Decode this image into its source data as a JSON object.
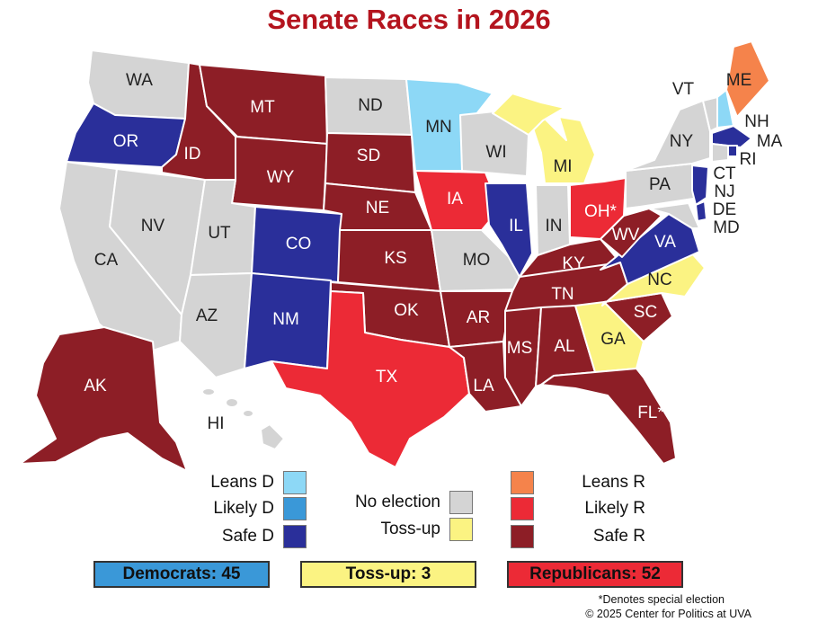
{
  "title": "Senate Races in 2026",
  "colors": {
    "leans_d": "#8dd8f6",
    "likely_d": "#3a98d8",
    "safe_d": "#2a2f9a",
    "no_election": "#d4d4d4",
    "tossup": "#fbf382",
    "leans_r": "#f5834b",
    "likely_r": "#ec2a36",
    "safe_r": "#8d1e26"
  },
  "legend": {
    "leans_d": "Leans D",
    "likely_d": "Likely D",
    "safe_d": "Safe D",
    "no_election": "No election",
    "tossup": "Toss-up",
    "leans_r": "Leans R",
    "likely_r": "Likely R",
    "safe_r": "Safe R"
  },
  "totals": {
    "democrats": "Democrats: 45",
    "tossup": "Toss-up: 3",
    "republicans": "Republicans: 52"
  },
  "footnote": "*Denotes special election",
  "credit": "© 2025 Center for Politics at UVA",
  "states": [
    {
      "code": "WA",
      "label": "WA",
      "rating": "no_election"
    },
    {
      "code": "OR",
      "label": "OR",
      "rating": "safe_d"
    },
    {
      "code": "CA",
      "label": "CA",
      "rating": "no_election"
    },
    {
      "code": "NV",
      "label": "NV",
      "rating": "no_election"
    },
    {
      "code": "ID",
      "label": "ID",
      "rating": "safe_r"
    },
    {
      "code": "MT",
      "label": "MT",
      "rating": "safe_r"
    },
    {
      "code": "WY",
      "label": "WY",
      "rating": "safe_r"
    },
    {
      "code": "UT",
      "label": "UT",
      "rating": "no_election"
    },
    {
      "code": "AZ",
      "label": "AZ",
      "rating": "no_election"
    },
    {
      "code": "CO",
      "label": "CO",
      "rating": "safe_d"
    },
    {
      "code": "NM",
      "label": "NM",
      "rating": "safe_d"
    },
    {
      "code": "ND",
      "label": "ND",
      "rating": "no_election"
    },
    {
      "code": "SD",
      "label": "SD",
      "rating": "safe_r"
    },
    {
      "code": "NE",
      "label": "NE",
      "rating": "safe_r"
    },
    {
      "code": "KS",
      "label": "KS",
      "rating": "safe_r"
    },
    {
      "code": "OK",
      "label": "OK",
      "rating": "safe_r"
    },
    {
      "code": "TX",
      "label": "TX",
      "rating": "likely_r"
    },
    {
      "code": "MN",
      "label": "MN",
      "rating": "leans_d"
    },
    {
      "code": "IA",
      "label": "IA",
      "rating": "likely_r"
    },
    {
      "code": "MO",
      "label": "MO",
      "rating": "no_election"
    },
    {
      "code": "AR",
      "label": "AR",
      "rating": "safe_r"
    },
    {
      "code": "LA",
      "label": "LA",
      "rating": "safe_r"
    },
    {
      "code": "WI",
      "label": "WI",
      "rating": "no_election"
    },
    {
      "code": "IL",
      "label": "IL",
      "rating": "safe_d"
    },
    {
      "code": "MI",
      "label": "MI",
      "rating": "tossup"
    },
    {
      "code": "IN",
      "label": "IN",
      "rating": "no_election"
    },
    {
      "code": "OH",
      "label": "OH*",
      "rating": "likely_r"
    },
    {
      "code": "KY",
      "label": "KY",
      "rating": "safe_r"
    },
    {
      "code": "TN",
      "label": "TN",
      "rating": "safe_r"
    },
    {
      "code": "MS",
      "label": "MS",
      "rating": "safe_r"
    },
    {
      "code": "AL",
      "label": "AL",
      "rating": "safe_r"
    },
    {
      "code": "GA",
      "label": "GA",
      "rating": "tossup"
    },
    {
      "code": "FL",
      "label": "FL*",
      "rating": "safe_r"
    },
    {
      "code": "SC",
      "label": "SC",
      "rating": "safe_r"
    },
    {
      "code": "NC",
      "label": "NC",
      "rating": "tossup"
    },
    {
      "code": "VA",
      "label": "VA",
      "rating": "safe_d"
    },
    {
      "code": "WV",
      "label": "WV",
      "rating": "safe_r"
    },
    {
      "code": "PA",
      "label": "PA",
      "rating": "no_election"
    },
    {
      "code": "NY",
      "label": "NY",
      "rating": "no_election"
    },
    {
      "code": "VT",
      "label": "VT",
      "rating": "no_election"
    },
    {
      "code": "NH",
      "label": "NH",
      "rating": "leans_d"
    },
    {
      "code": "ME",
      "label": "ME",
      "rating": "leans_r"
    },
    {
      "code": "MA",
      "label": "MA",
      "rating": "safe_d"
    },
    {
      "code": "RI",
      "label": "RI",
      "rating": "safe_d"
    },
    {
      "code": "CT",
      "label": "CT",
      "rating": "no_election"
    },
    {
      "code": "NJ",
      "label": "NJ",
      "rating": "safe_d"
    },
    {
      "code": "DE",
      "label": "DE",
      "rating": "safe_d"
    },
    {
      "code": "MD",
      "label": "MD",
      "rating": "no_election"
    },
    {
      "code": "AK",
      "label": "AK",
      "rating": "safe_r"
    },
    {
      "code": "HI",
      "label": "HI",
      "rating": "no_election"
    }
  ]
}
